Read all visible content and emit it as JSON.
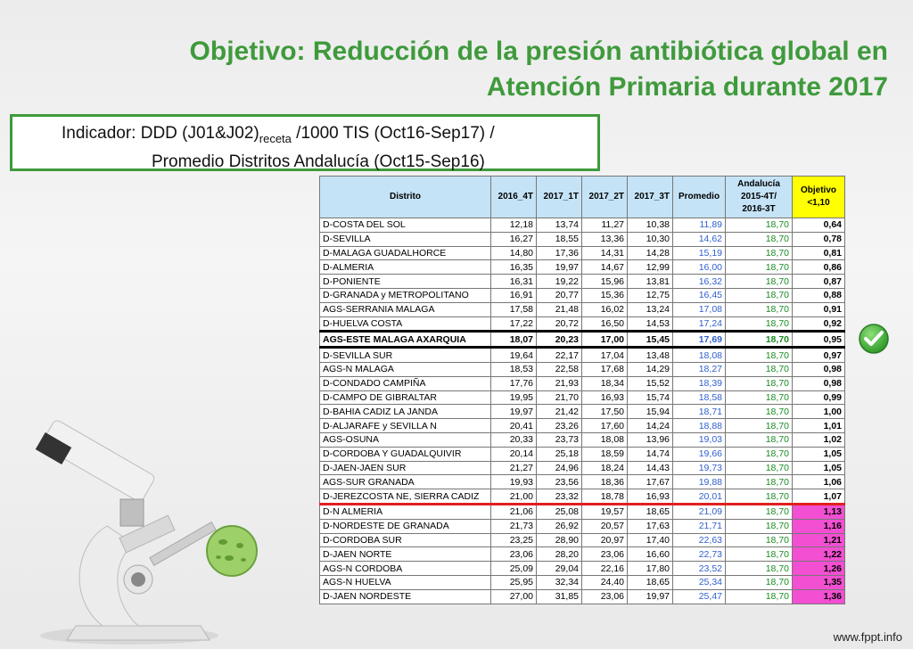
{
  "title": {
    "line1": "Objetivo:  Reducción de la presión antibiótica global en",
    "line2": "Atención Primaria durante 2017"
  },
  "indicator": {
    "prefix": "Indicador: DDD (J01&J02)",
    "subscript": "receta",
    "suffix": " /1000 TIS (Oct16-Sep17) /",
    "line2": "Promedio Distritos Andalucía (Oct15-Sep16)"
  },
  "table": {
    "headers": {
      "distrito": "Distrito",
      "q1": "2016_4T",
      "q2": "2017_1T",
      "q3": "2017_2T",
      "q4": "2017_3T",
      "promedio": "Promedio",
      "andalucia": "Andalucía 2015-4T/ 2016-3T",
      "objetivo": "Objetivo <1,10"
    },
    "rows": [
      [
        "D-COSTA DEL SOL",
        "12,18",
        "13,74",
        "11,27",
        "10,38",
        "11,89",
        "18,70",
        "0,64"
      ],
      [
        "D-SEVILLA",
        "16,27",
        "18,55",
        "13,36",
        "10,30",
        "14,62",
        "18,70",
        "0,78"
      ],
      [
        "D-MALAGA GUADALHORCE",
        "14,80",
        "17,36",
        "14,31",
        "14,28",
        "15,19",
        "18,70",
        "0,81"
      ],
      [
        "D-ALMERIA",
        "16,35",
        "19,97",
        "14,67",
        "12,99",
        "16,00",
        "18,70",
        "0,86"
      ],
      [
        "D-PONIENTE",
        "16,31",
        "19,22",
        "15,96",
        "13,81",
        "16,32",
        "18,70",
        "0,87"
      ],
      [
        "D-GRANADA y METROPOLITANO",
        "16,91",
        "20,77",
        "15,36",
        "12,75",
        "16,45",
        "18,70",
        "0,88"
      ],
      [
        "AGS-SERRANIA MALAGA",
        "17,58",
        "21,48",
        "16,02",
        "13,24",
        "17,08",
        "18,70",
        "0,91"
      ],
      [
        "D-HUELVA COSTA",
        "17,22",
        "20,72",
        "16,50",
        "14,53",
        "17,24",
        "18,70",
        "0,92"
      ],
      [
        "AGS-ESTE MALAGA AXARQUIA",
        "18,07",
        "20,23",
        "17,00",
        "15,45",
        "17,69",
        "18,70",
        "0,95"
      ],
      [
        "D-SEVILLA SUR",
        "19,64",
        "22,17",
        "17,04",
        "13,48",
        "18,08",
        "18,70",
        "0,97"
      ],
      [
        "AGS-N MALAGA",
        "18,53",
        "22,58",
        "17,68",
        "14,29",
        "18,27",
        "18,70",
        "0,98"
      ],
      [
        "D-CONDADO CAMPIÑA",
        "17,76",
        "21,93",
        "18,34",
        "15,52",
        "18,39",
        "18,70",
        "0,98"
      ],
      [
        "D-CAMPO DE GIBRALTAR",
        "19,95",
        "21,70",
        "16,93",
        "15,74",
        "18,58",
        "18,70",
        "0,99"
      ],
      [
        "D-BAHIA CADIZ LA JANDA",
        "19,97",
        "21,42",
        "17,50",
        "15,94",
        "18,71",
        "18,70",
        "1,00"
      ],
      [
        "D-ALJARAFE y SEVILLA N",
        "20,41",
        "23,26",
        "17,60",
        "14,24",
        "18,88",
        "18,70",
        "1,01"
      ],
      [
        "AGS-OSUNA",
        "20,33",
        "23,73",
        "18,08",
        "13,96",
        "19,03",
        "18,70",
        "1,02"
      ],
      [
        "D-CORDOBA Y GUADALQUIVIR",
        "20,14",
        "25,18",
        "18,59",
        "14,74",
        "19,66",
        "18,70",
        "1,05"
      ],
      [
        "D-JAEN-JAEN SUR",
        "21,27",
        "24,96",
        "18,24",
        "14,43",
        "19,73",
        "18,70",
        "1,05"
      ],
      [
        "AGS-SUR GRANADA",
        "19,93",
        "23,56",
        "18,36",
        "17,67",
        "19,88",
        "18,70",
        "1,06"
      ],
      [
        "D-JEREZCOSTA NE, SIERRA CADIZ",
        "21,00",
        "23,32",
        "18,78",
        "16,93",
        "20,01",
        "18,70",
        "1,07"
      ],
      [
        "D-N ALMERIA",
        "21,06",
        "25,08",
        "19,57",
        "18,65",
        "21,09",
        "18,70",
        "1,13"
      ],
      [
        "D-NORDESTE DE GRANADA",
        "21,73",
        "26,92",
        "20,57",
        "17,63",
        "21,71",
        "18,70",
        "1,16"
      ],
      [
        "D-CORDOBA SUR",
        "23,25",
        "28,90",
        "20,97",
        "17,40",
        "22,63",
        "18,70",
        "1,21"
      ],
      [
        "D-JAEN NORTE",
        "23,06",
        "28,20",
        "23,06",
        "16,60",
        "22,73",
        "18,70",
        "1,22"
      ],
      [
        "AGS-N CORDOBA",
        "25,09",
        "29,04",
        "22,16",
        "17,80",
        "23,52",
        "18,70",
        "1,26"
      ],
      [
        "AGS-N HUELVA",
        "25,95",
        "32,34",
        "24,40",
        "18,65",
        "25,34",
        "18,70",
        "1,35"
      ],
      [
        "D-JAEN NORDESTE",
        "27,00",
        "31,85",
        "23,06",
        "19,97",
        "25,47",
        "18,70",
        "1,36"
      ]
    ],
    "highlight_row_index": 8,
    "red_line_before_index": 20,
    "over_target_from_index": 20
  },
  "colors": {
    "title_green": "#3f9a3c",
    "header_blue": "#c5e3f6",
    "objective_yellow": "#ffff00",
    "over_target_pink": "#f24fd2",
    "promedio_blue": "#2f5fcf",
    "andalucia_green": "#1a8a22",
    "divider_red": "#e02020"
  },
  "icons": {
    "check": "check-circle-icon",
    "microscope": "microscope-illustration"
  },
  "footer": {
    "site": "www.fppt.info"
  }
}
